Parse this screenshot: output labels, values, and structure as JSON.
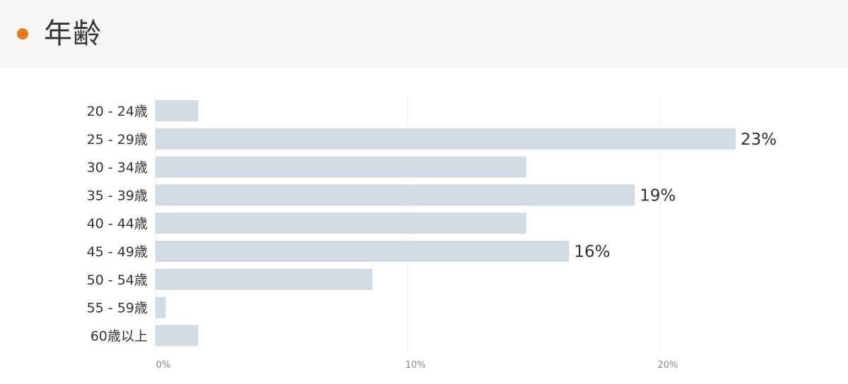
{
  "header": {
    "title": "年齢",
    "dot_color": "#e67e0f"
  },
  "colors": {
    "bar": "#cfdbe5",
    "grid": "#eeeeee"
  },
  "chart_data": {
    "type": "bar",
    "orientation": "horizontal",
    "categories": [
      "20 - 24歳",
      "25 - 29歳",
      "30 - 34歳",
      "35 - 39歳",
      "40 - 44歳",
      "45 - 49歳",
      "50 - 54歳",
      "55 - 59歳",
      "60歳以上"
    ],
    "values": [
      1.7,
      23,
      14.7,
      19,
      14.7,
      16.4,
      8.6,
      0.4,
      1.7
    ],
    "data_labels": [
      "",
      "23%",
      "",
      "19%",
      "",
      "16%",
      "",
      "",
      ""
    ],
    "xticks": [
      "0%",
      "10%",
      "20%"
    ],
    "xtick_values": [
      0,
      10,
      20
    ],
    "xlim": [
      0,
      23
    ],
    "grid": true
  }
}
